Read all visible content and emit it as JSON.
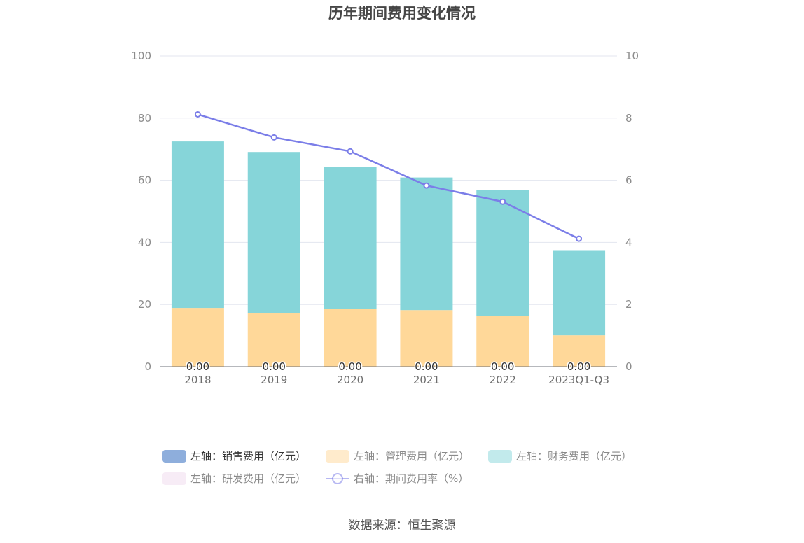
{
  "chart_data": {
    "type": "bar",
    "title": "历年期间费用变化情况",
    "source": "数据来源：恒生聚源",
    "categories": [
      "2018",
      "2019",
      "2020",
      "2021",
      "2022",
      "2023Q1-Q3"
    ],
    "y_left": {
      "min": 0,
      "max": 100,
      "ticks": [
        "0",
        "20",
        "40",
        "60",
        "80",
        "100"
      ]
    },
    "y_right": {
      "min": 0,
      "max": 10,
      "ticks": [
        "0",
        "2",
        "4",
        "6",
        "8",
        "10"
      ]
    },
    "series": [
      {
        "name": "左轴：销售费用（亿元）",
        "kind": "bar",
        "axis": "left",
        "color": "#8eaedc",
        "values": [
          0,
          0,
          0,
          0,
          0,
          0
        ],
        "labels": [
          "0.00",
          "0.00",
          "0.00",
          "0.00",
          "0.00",
          "0.00"
        ]
      },
      {
        "name": "左轴：管理费用（亿元）",
        "kind": "bar",
        "axis": "left",
        "color": "#ffd899",
        "values": [
          18.9,
          17.3,
          18.5,
          18.2,
          16.4,
          10.1
        ]
      },
      {
        "name": "左轴：财务费用（亿元）",
        "kind": "bar",
        "axis": "left",
        "color": "#86d5d9",
        "values": [
          53.6,
          51.8,
          45.8,
          42.7,
          40.5,
          27.4
        ]
      },
      {
        "name": "左轴：研发费用（亿元）",
        "kind": "bar",
        "axis": "left",
        "color": "#f0d9ee",
        "values": [
          0,
          0,
          0,
          0,
          0,
          0
        ]
      },
      {
        "name": "右轴：期间费用率（%）",
        "kind": "line",
        "axis": "right",
        "color": "#7b7ee8",
        "values": [
          8.12,
          7.38,
          6.93,
          5.83,
          5.31,
          4.12
        ]
      }
    ]
  }
}
